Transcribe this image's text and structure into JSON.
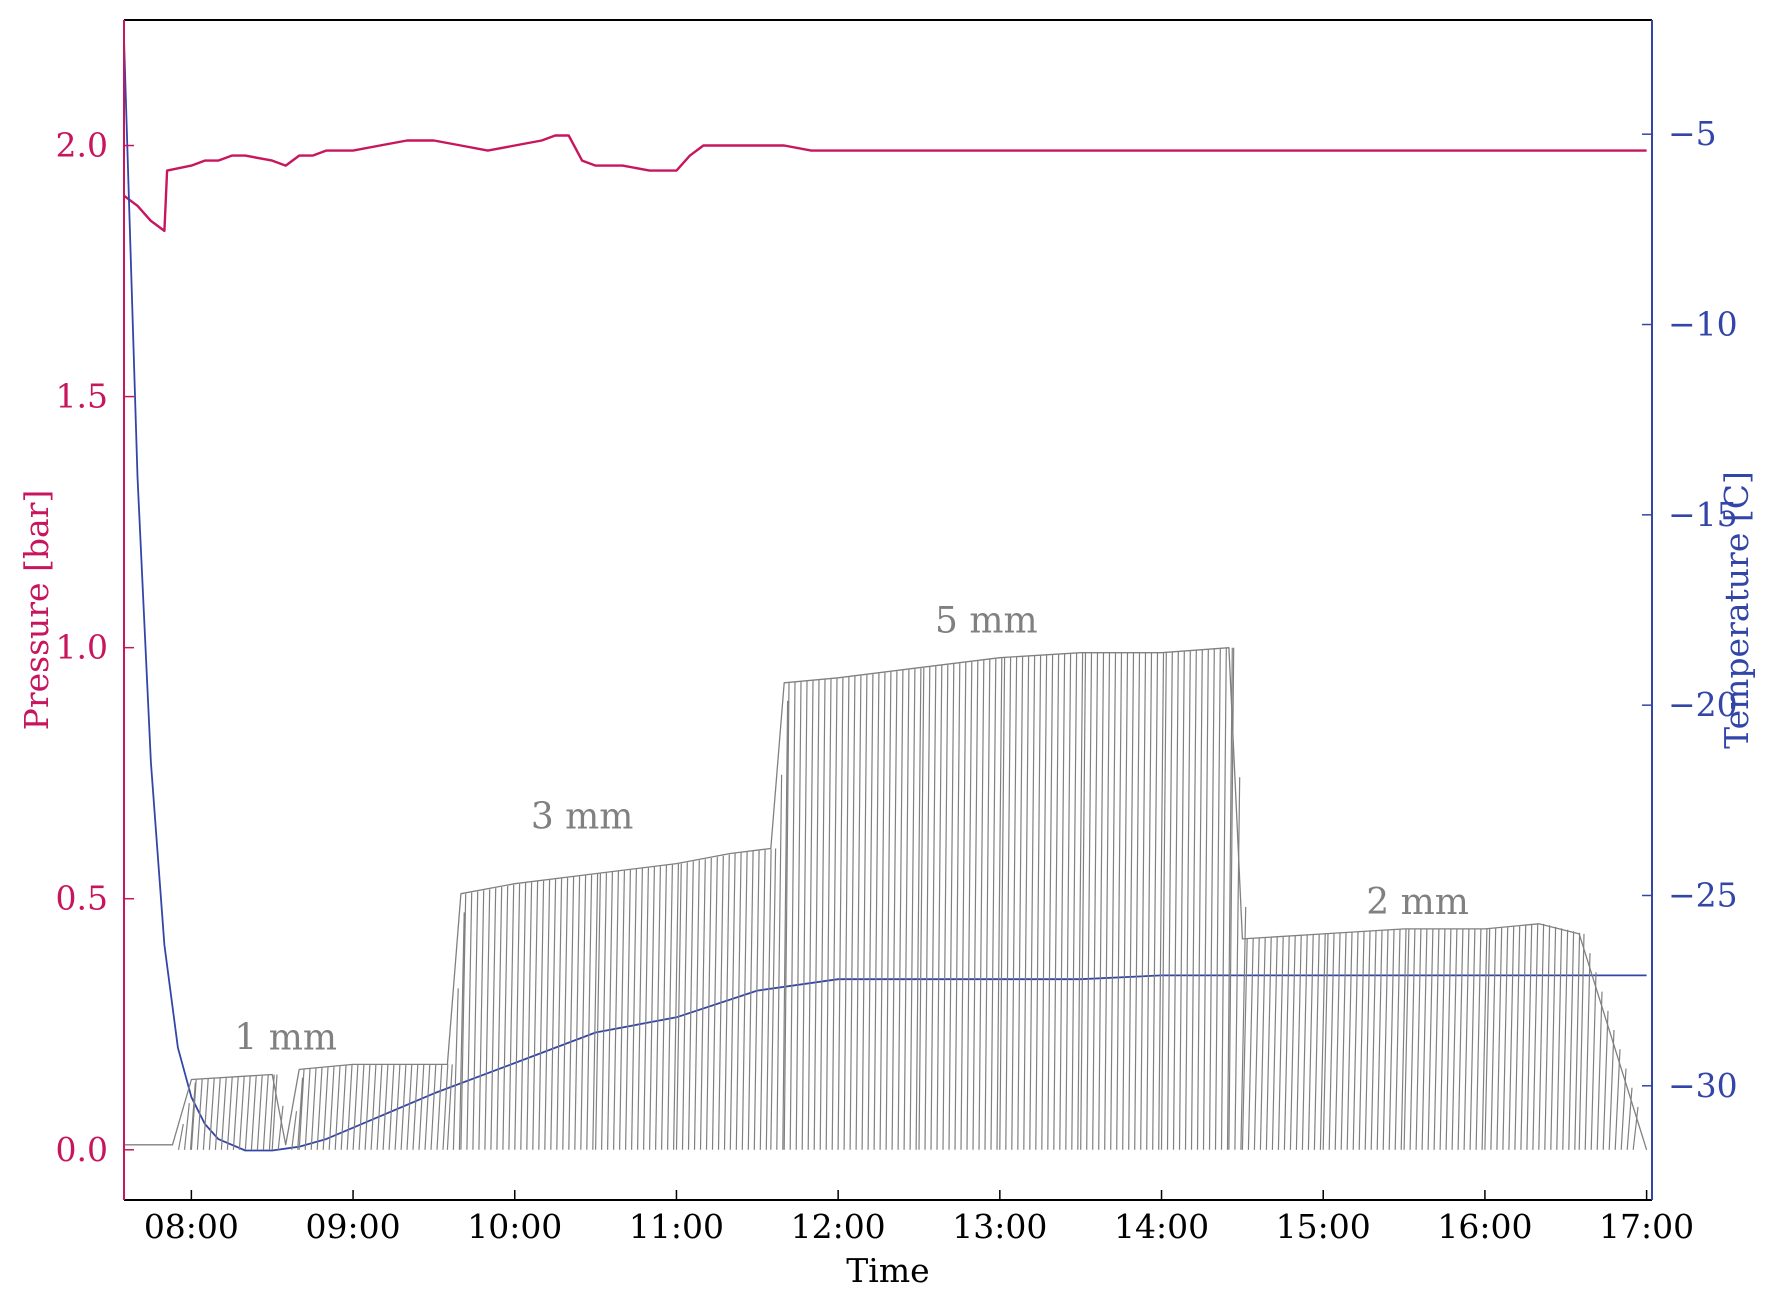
{
  "chart_data": {
    "type": "line",
    "title": "",
    "xlabel": "Time",
    "ylabel_left": "Pressure [bar]",
    "ylabel_right": "Temperature [C]",
    "x_unit": "HH:MM",
    "xlim": [
      "07:35",
      "17:02"
    ],
    "ylim_left": [
      -0.1,
      2.25
    ],
    "ylim_right": [
      -33,
      -2
    ],
    "grid": false,
    "legend": "none",
    "x_ticks": [
      "08:00",
      "09:00",
      "10:00",
      "11:00",
      "12:00",
      "13:00",
      "14:00",
      "15:00",
      "16:00",
      "17:00"
    ],
    "y_ticks_left": [
      0.0,
      0.5,
      1.0,
      1.5,
      2.0
    ],
    "y_tick_labels_left": [
      "0.0",
      "0.5",
      "1.0",
      "1.5",
      "2.0"
    ],
    "y_ticks_right": [
      -30,
      -25,
      -20,
      -15,
      -10,
      -5
    ],
    "y_tick_labels_right": [
      "−30",
      "−25",
      "−20",
      "−15",
      "−10",
      "−5"
    ],
    "colors": {
      "pressure": "#c8165e",
      "temperature": "#3346a8",
      "pulses": "#808080",
      "left_axis": "#c8165e",
      "right_axis": "#3346a8"
    },
    "series": [
      {
        "axis": "left",
        "x": [
          "07:35",
          "07:40",
          "07:45",
          "07:50",
          "07:51",
          "08:00",
          "08:05",
          "08:10",
          "08:15",
          "08:20",
          "08:30",
          "08:35",
          "08:40",
          "08:45",
          "08:50",
          "09:00",
          "09:10",
          "09:20",
          "09:30",
          "09:40",
          "09:50",
          "10:00",
          "10:10",
          "10:15",
          "10:20",
          "10:25",
          "10:30",
          "10:40",
          "10:50",
          "11:00",
          "11:05",
          "11:10",
          "11:20",
          "11:30",
          "11:40",
          "11:50",
          "12:00",
          "12:30",
          "13:00",
          "13:30",
          "14:00",
          "14:30",
          "15:00",
          "15:30",
          "16:00",
          "16:30",
          "17:00"
        ],
        "y": [
          1.9,
          1.88,
          1.85,
          1.83,
          1.95,
          1.96,
          1.97,
          1.97,
          1.98,
          1.98,
          1.97,
          1.96,
          1.98,
          1.98,
          1.99,
          1.99,
          2.0,
          2.01,
          2.01,
          2.0,
          1.99,
          2.0,
          2.01,
          2.02,
          2.02,
          1.97,
          1.96,
          1.96,
          1.95,
          1.95,
          1.98,
          2.0,
          2.0,
          2.0,
          2.0,
          1.99,
          1.99,
          1.99,
          1.99,
          1.99,
          1.99,
          1.99,
          1.99,
          1.99,
          1.99,
          1.99,
          1.99
        ]
      },
      {
        "axis": "right",
        "x": [
          "07:35",
          "07:40",
          "07:45",
          "07:50",
          "07:55",
          "08:00",
          "08:05",
          "08:10",
          "08:20",
          "08:30",
          "08:40",
          "08:50",
          "09:00",
          "09:30",
          "10:00",
          "10:30",
          "11:00",
          "11:30",
          "12:00",
          "12:30",
          "13:00",
          "13:30",
          "14:00",
          "14:30",
          "15:00",
          "15:30",
          "16:00",
          "16:30",
          "17:00"
        ],
        "y": [
          -2.5,
          -14.0,
          -21.5,
          -26.3,
          -29.0,
          -30.3,
          -31.0,
          -31.4,
          -31.7,
          -31.7,
          -31.6,
          -31.4,
          -31.1,
          -30.2,
          -29.4,
          -28.6,
          -28.2,
          -27.5,
          -27.2,
          -27.2,
          -27.2,
          -27.2,
          -27.1,
          -27.1,
          -27.1,
          -27.1,
          -27.1,
          -27.1,
          -27.1
        ]
      },
      {
        "axis": "left",
        "x": [
          "07:35",
          "07:53",
          "08:00",
          "08:30",
          "08:35",
          "08:40",
          "09:00",
          "09:20",
          "09:35",
          "09:40",
          "10:00",
          "10:30",
          "11:00",
          "11:20",
          "11:35",
          "11:40",
          "12:00",
          "12:30",
          "13:00",
          "13:30",
          "14:00",
          "14:25",
          "14:30",
          "15:00",
          "15:30",
          "16:00",
          "16:20",
          "16:35",
          "17:00"
        ],
        "y": [
          0.01,
          0.01,
          0.14,
          0.15,
          0.01,
          0.16,
          0.17,
          0.17,
          0.17,
          0.51,
          0.53,
          0.55,
          0.57,
          0.59,
          0.6,
          0.93,
          0.94,
          0.96,
          0.98,
          0.99,
          0.99,
          1.0,
          0.42,
          0.43,
          0.44,
          0.44,
          0.45,
          0.43,
          0.0
        ],
        "y_min": 0.0
      }
    ],
    "annotations": [
      {
        "text": "1 mm",
        "x": "08:35",
        "y": 0.2
      },
      {
        "text": "3 mm",
        "x": "10:25",
        "y": 0.64
      },
      {
        "text": "5 mm",
        "x": "12:55",
        "y": 1.03
      },
      {
        "text": "2 mm",
        "x": "15:35",
        "y": 0.47
      }
    ]
  }
}
